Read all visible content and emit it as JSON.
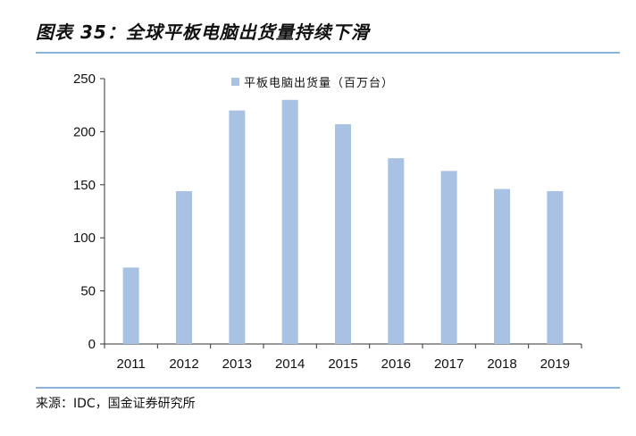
{
  "figure_title": "图表 35：全球平板电脑出货量持续下滑",
  "source": "来源：IDC，国金证券研究所",
  "colors": {
    "bar": "#a9c1e2",
    "rule": "#8cb3d9",
    "axis": "#333333"
  },
  "chart_data": {
    "type": "bar",
    "categories": [
      "2011",
      "2012",
      "2013",
      "2014",
      "2015",
      "2016",
      "2017",
      "2018",
      "2019"
    ],
    "series": [
      {
        "name": "平板电脑出货量（百万台）",
        "values": [
          72,
          144,
          220,
          230,
          207,
          175,
          163,
          146,
          144
        ]
      }
    ],
    "ylim": [
      0,
      250
    ],
    "yticks": [
      0,
      50,
      100,
      150,
      200,
      250
    ],
    "legend_position": "top",
    "grid": false,
    "title": "",
    "xlabel": "",
    "ylabel": ""
  }
}
